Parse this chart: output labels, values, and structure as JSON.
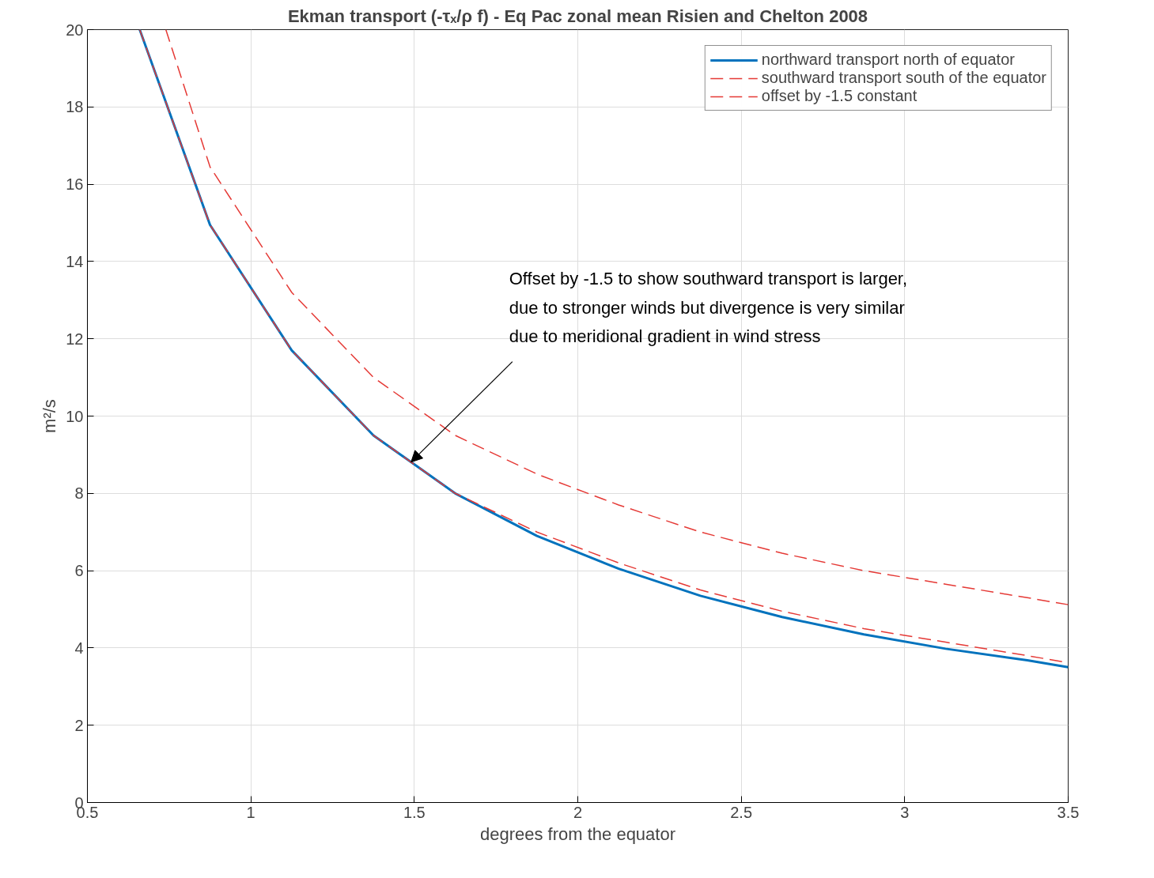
{
  "chart_data": {
    "type": "line",
    "title": "Ekman transport (-τₓ/ρ f) - Eq Pac zonal mean Risien and Chelton 2008",
    "xlabel": "degrees from the equator",
    "ylabel": "m²/s",
    "xlim": [
      0.5,
      3.5
    ],
    "ylim": [
      0,
      20
    ],
    "xticks": [
      0.5,
      1,
      1.5,
      2,
      2.5,
      3,
      3.5
    ],
    "yticks": [
      0,
      2,
      4,
      6,
      8,
      10,
      12,
      14,
      16,
      18,
      20
    ],
    "grid": true,
    "legend": "top right",
    "series": [
      {
        "name": "northward transport north of equator",
        "color": "#0072bd",
        "line_style": "solid",
        "x": [
          0.66,
          0.875,
          1.125,
          1.375,
          1.625,
          1.875,
          2.125,
          2.375,
          2.625,
          2.875,
          3.125,
          3.375,
          3.5
        ],
        "values": [
          20,
          14.95,
          11.7,
          9.5,
          8.0,
          6.9,
          6.05,
          5.35,
          4.8,
          4.35,
          3.98,
          3.68,
          3.5
        ]
      },
      {
        "name": "southward transport south of the equator",
        "color": "#e53935",
        "line_style": "dashed",
        "x": [
          0.74,
          0.875,
          1.125,
          1.375,
          1.625,
          1.875,
          2.125,
          2.375,
          2.625,
          2.875,
          3.125,
          3.375,
          3.5
        ],
        "values": [
          20,
          16.45,
          13.2,
          11.0,
          9.5,
          8.5,
          7.7,
          7.0,
          6.45,
          6.0,
          5.65,
          5.3,
          5.12
        ]
      },
      {
        "name": "offset by -1.5 constant",
        "color": "#e53935",
        "line_style": "dashed",
        "x": [
          0.66,
          0.875,
          1.125,
          1.375,
          1.625,
          1.875,
          2.125,
          2.375,
          2.625,
          2.875,
          3.125,
          3.375,
          3.5
        ],
        "values": [
          20,
          14.95,
          11.7,
          9.5,
          8.0,
          7.0,
          6.2,
          5.5,
          4.95,
          4.5,
          4.15,
          3.8,
          3.62
        ]
      }
    ],
    "annotations": [
      {
        "text": "Offset by -1.5 to show southward transport is larger,\ndue to stronger winds but divergence is very similar\ndue to meridional gradient in wind stress",
        "x": 1.49,
        "y": 8.81
      }
    ]
  }
}
